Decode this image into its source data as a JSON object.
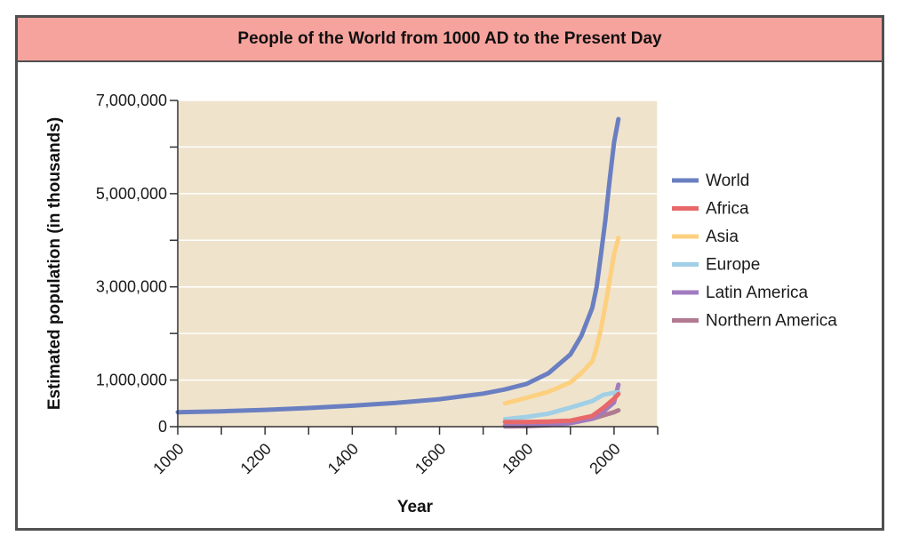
{
  "chart_data": {
    "type": "line",
    "title": "People of the World from 1000 AD to the Present Day",
    "xlabel": "Year",
    "ylabel": "Estimated population (in thousands)",
    "xlim": [
      1000,
      2100
    ],
    "ylim": [
      0,
      7000000
    ],
    "x_ticks": [
      1000,
      1200,
      1400,
      1600,
      1800,
      2000
    ],
    "x_tick_labels": [
      "1000",
      "1200",
      "1400",
      "1600",
      "1800",
      "2000"
    ],
    "y_ticks": [
      0,
      1000000,
      3000000,
      5000000,
      7000000
    ],
    "y_tick_labels": [
      "0",
      "1,000,000",
      "3,000,000",
      "5,000,000",
      "7,000,000"
    ],
    "y_minor_ticks": [
      2000000,
      4000000,
      6000000
    ],
    "grid": true,
    "legend_position": "right",
    "background_color": "#efe3cc",
    "series": [
      {
        "name": "World",
        "color": "#6a7fc1",
        "x": [
          1000,
          1100,
          1200,
          1300,
          1400,
          1500,
          1600,
          1700,
          1750,
          1800,
          1850,
          1900,
          1925,
          1950,
          1960,
          1970,
          1980,
          1990,
          2000,
          2010
        ],
        "y": [
          310000,
          330000,
          360000,
          400000,
          450000,
          510000,
          590000,
          710000,
          800000,
          920000,
          1150000,
          1550000,
          1950000,
          2550000,
          3000000,
          3700000,
          4430000,
          5300000,
          6100000,
          6600000
        ]
      },
      {
        "name": "Africa",
        "color": "#e8686a",
        "x": [
          1750,
          1800,
          1850,
          1900,
          1950,
          1975,
          2000,
          2010
        ],
        "y": [
          100000,
          100000,
          110000,
          130000,
          230000,
          400000,
          600000,
          700000
        ]
      },
      {
        "name": "Asia",
        "color": "#fdd07f",
        "x": [
          1750,
          1800,
          1850,
          1900,
          1925,
          1950,
          1960,
          1970,
          1980,
          1990,
          2000,
          2010
        ],
        "y": [
          500000,
          620000,
          750000,
          950000,
          1150000,
          1400000,
          1700000,
          2100000,
          2600000,
          3150000,
          3700000,
          4050000
        ]
      },
      {
        "name": "Europe",
        "color": "#a0cfe6",
        "x": [
          1750,
          1800,
          1850,
          1900,
          1950,
          1975,
          2000,
          2010
        ],
        "y": [
          160000,
          210000,
          280000,
          410000,
          550000,
          680000,
          730000,
          740000
        ]
      },
      {
        "name": "Latin America",
        "color": "#a17bc0",
        "x": [
          1750,
          1800,
          1850,
          1900,
          1950,
          1975,
          2000,
          2010
        ],
        "y": [
          20000,
          25000,
          35000,
          75000,
          170000,
          320000,
          520000,
          900000
        ]
      },
      {
        "name": "Northern America",
        "color": "#b07a90",
        "x": [
          1750,
          1800,
          1850,
          1900,
          1950,
          1975,
          2000,
          2010
        ],
        "y": [
          5000,
          10000,
          30000,
          80000,
          170000,
          240000,
          310000,
          350000
        ]
      }
    ]
  }
}
